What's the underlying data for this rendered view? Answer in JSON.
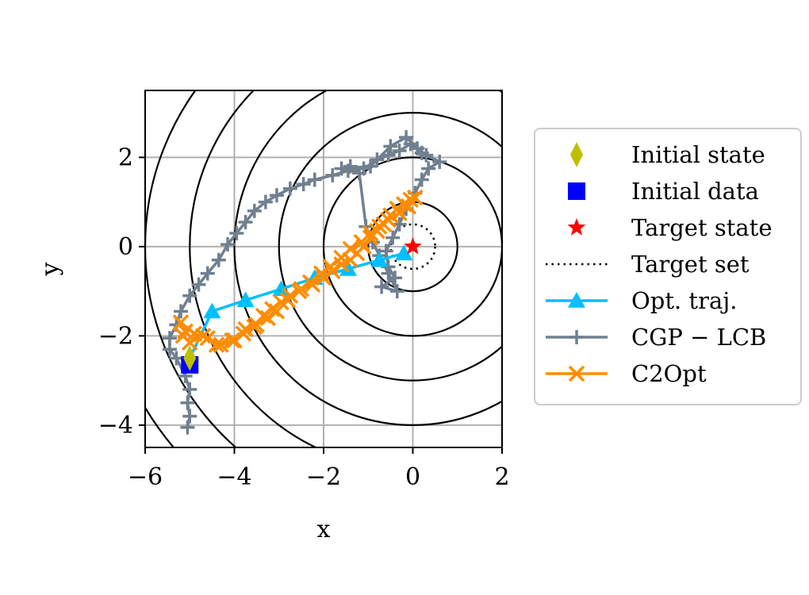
{
  "chart_data": {
    "type": "line",
    "title": "",
    "xlabel": "x",
    "ylabel": "y",
    "xlim": [
      -6,
      2
    ],
    "ylim": [
      -4.5,
      3.5
    ],
    "xticks": [
      -6,
      -4,
      -2,
      0,
      2
    ],
    "yticks": [
      -4,
      -2,
      0,
      2
    ],
    "xtick_labels": [
      "−6",
      "−4",
      "−2",
      "0",
      "2"
    ],
    "ytick_labels": [
      "−4",
      "−2",
      "0",
      "2"
    ],
    "grid": true,
    "legend_position": "right",
    "contour_levels": [
      1,
      2,
      3,
      4,
      5,
      6,
      7,
      8
    ],
    "target_state": [
      0,
      0
    ],
    "target_set_radius": 0.5,
    "initial_state": [
      -5,
      -2.5
    ],
    "initial_data": [
      -5,
      -2.65
    ],
    "colors": {
      "initial_state": "#bfbf00",
      "initial_data": "#0000ff",
      "target_state": "#ff0000",
      "target_set": "#000000",
      "opt_traj": "#00bfff",
      "cgp_lcb": "#708090",
      "c2opt": "#ff8c00",
      "contour": "#000000",
      "grid": "#b0b0b0"
    },
    "series": [
      {
        "name": "Opt. traj.",
        "points": [
          [
            -5,
            -2.5
          ],
          [
            -4.5,
            -1.45
          ],
          [
            -3.75,
            -1.2
          ],
          [
            -2.95,
            -0.95
          ],
          [
            -2.2,
            -0.7
          ],
          [
            -1.45,
            -0.5
          ],
          [
            -0.75,
            -0.3
          ],
          [
            -0.2,
            -0.15
          ]
        ]
      },
      {
        "name": "CGP − LCB",
        "points": [
          [
            -5.05,
            -4.05
          ],
          [
            -5.0,
            -3.8
          ],
          [
            -5.05,
            -3.5
          ],
          [
            -5.0,
            -3.2
          ],
          [
            -5.1,
            -2.9
          ],
          [
            -5.3,
            -2.5
          ],
          [
            -5.45,
            -2.3
          ],
          [
            -5.45,
            -2.05
          ],
          [
            -5.3,
            -1.75
          ],
          [
            -5.2,
            -1.45
          ],
          [
            -5.0,
            -1.1
          ],
          [
            -4.8,
            -0.85
          ],
          [
            -4.6,
            -0.6
          ],
          [
            -4.35,
            -0.3
          ],
          [
            -4.15,
            0.05
          ],
          [
            -3.95,
            0.3
          ],
          [
            -3.75,
            0.55
          ],
          [
            -3.55,
            0.8
          ],
          [
            -3.3,
            1.0
          ],
          [
            -3.05,
            1.15
          ],
          [
            -2.75,
            1.3
          ],
          [
            -2.45,
            1.4
          ],
          [
            -2.2,
            1.5
          ],
          [
            -1.8,
            1.6
          ],
          [
            -1.45,
            1.7
          ],
          [
            -1.1,
            1.75
          ],
          [
            -0.8,
            1.95
          ],
          [
            -0.55,
            2.05
          ],
          [
            -0.3,
            2.15
          ],
          [
            -0.05,
            2.3
          ],
          [
            0.1,
            2.2
          ],
          [
            0.3,
            2.05
          ],
          [
            0.6,
            1.9
          ],
          [
            0.35,
            1.75
          ],
          [
            0.2,
            1.5
          ],
          [
            0.05,
            1.2
          ],
          [
            -0.15,
            0.85
          ],
          [
            -0.3,
            0.5
          ],
          [
            -0.45,
            0.2
          ],
          [
            -0.6,
            -0.1
          ],
          [
            -0.55,
            -0.45
          ],
          [
            -0.4,
            -0.7
          ],
          [
            -0.7,
            -0.9
          ],
          [
            -0.35,
            -1.0
          ],
          [
            -0.55,
            -0.6
          ],
          [
            -0.75,
            -0.2
          ],
          [
            -0.9,
            0.1
          ],
          [
            -1.05,
            0.45
          ],
          [
            -1.2,
            1.65
          ],
          [
            -1.4,
            1.8
          ],
          [
            -1.6,
            1.75
          ],
          [
            -0.95,
            1.8
          ],
          [
            -0.5,
            2.25
          ],
          [
            -0.15,
            2.45
          ],
          [
            0.2,
            2.1
          ]
        ]
      },
      {
        "name": "C2Opt",
        "points": [
          [
            -5.1,
            -1.9
          ],
          [
            -5.2,
            -1.7
          ],
          [
            -4.9,
            -1.95
          ],
          [
            -4.6,
            -2.05
          ],
          [
            -4.3,
            -2.2
          ],
          [
            -4.0,
            -2.1
          ],
          [
            -3.8,
            -1.95
          ],
          [
            -3.55,
            -1.8
          ],
          [
            -3.35,
            -1.55
          ],
          [
            -3.15,
            -1.4
          ],
          [
            -2.95,
            -1.25
          ],
          [
            -2.75,
            -1.1
          ],
          [
            -2.5,
            -0.95
          ],
          [
            -2.25,
            -0.85
          ],
          [
            -2.0,
            -0.7
          ],
          [
            -1.8,
            -0.55
          ],
          [
            -1.6,
            -0.4
          ],
          [
            -1.4,
            -0.3
          ],
          [
            -1.25,
            -0.15
          ],
          [
            -1.1,
            0.0
          ],
          [
            -0.95,
            0.2
          ],
          [
            -0.8,
            0.35
          ],
          [
            -0.65,
            0.5
          ],
          [
            -0.5,
            0.7
          ],
          [
            -0.35,
            0.85
          ],
          [
            -0.2,
            0.95
          ],
          [
            -0.05,
            1.05
          ],
          [
            0.05,
            1.1
          ],
          [
            -0.1,
            0.9
          ],
          [
            -0.3,
            0.75
          ],
          [
            -0.55,
            0.6
          ],
          [
            -0.75,
            0.45
          ],
          [
            -0.95,
            0.3
          ],
          [
            -1.15,
            0.1
          ],
          [
            -1.4,
            -0.05
          ],
          [
            -1.6,
            -0.25
          ],
          [
            -1.85,
            -0.45
          ],
          [
            -2.05,
            -0.6
          ],
          [
            -2.3,
            -0.8
          ],
          [
            -2.55,
            -1.0
          ],
          [
            -2.8,
            -1.2
          ],
          [
            -3.05,
            -1.45
          ],
          [
            -3.25,
            -1.6
          ],
          [
            -3.5,
            -1.75
          ],
          [
            -3.75,
            -1.85
          ],
          [
            -4.05,
            -2.1
          ],
          [
            -4.4,
            -2.2
          ],
          [
            -4.7,
            -2.0
          ],
          [
            -5.0,
            -2.15
          ],
          [
            -5.15,
            -2.0
          ]
        ]
      }
    ],
    "legend": [
      {
        "key": "initial_state",
        "label": "Initial state"
      },
      {
        "key": "initial_data",
        "label": "Initial data"
      },
      {
        "key": "target_state",
        "label": "Target state"
      },
      {
        "key": "target_set",
        "label": "Target set"
      },
      {
        "key": "opt_traj",
        "label": "Opt. traj."
      },
      {
        "key": "cgp_lcb",
        "label": "CGP − LCB"
      },
      {
        "key": "c2opt",
        "label": "C2Opt"
      }
    ]
  }
}
